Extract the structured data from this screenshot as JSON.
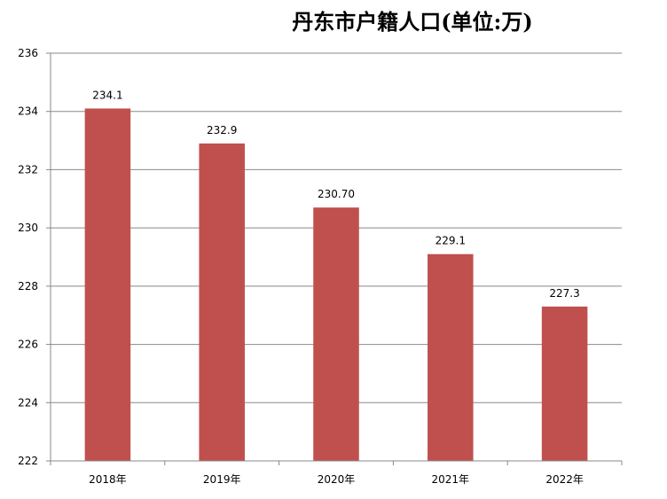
{
  "chart_data": {
    "type": "bar",
    "title": "丹东市户籍人口(单位:万)",
    "xlabel": "",
    "ylabel": "",
    "categories": [
      "2018年",
      "2019年",
      "2020年",
      "2021年",
      "2022年"
    ],
    "values": [
      234.1,
      232.9,
      230.7,
      229.1,
      227.3
    ],
    "data_labels": [
      "234.1",
      "232.9",
      "230.70",
      "229.1",
      "227.3"
    ],
    "ylim": [
      222,
      236
    ],
    "yticks": [
      "222",
      "224",
      "226",
      "228",
      "230",
      "232",
      "234",
      "236"
    ],
    "grid": true,
    "legend": "none",
    "bar_color": "#C0504D",
    "gridline_color": "#898989",
    "axis_color": "#898989"
  }
}
